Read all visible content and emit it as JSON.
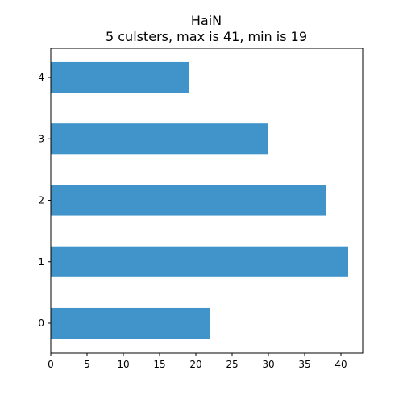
{
  "chart_data": {
    "type": "bar",
    "orientation": "horizontal",
    "title": "HaiN",
    "subtitle": "5 culsters, max is 41, min is 19",
    "xlabel": "",
    "ylabel": "",
    "categories": [
      "0",
      "1",
      "2",
      "3",
      "4"
    ],
    "values": [
      22,
      41,
      38,
      30,
      19
    ],
    "xlim": [
      0,
      43
    ],
    "xticks": [
      0,
      5,
      10,
      15,
      20,
      25,
      30,
      35,
      40
    ],
    "grid": false,
    "bar_color": "#4094c9"
  }
}
